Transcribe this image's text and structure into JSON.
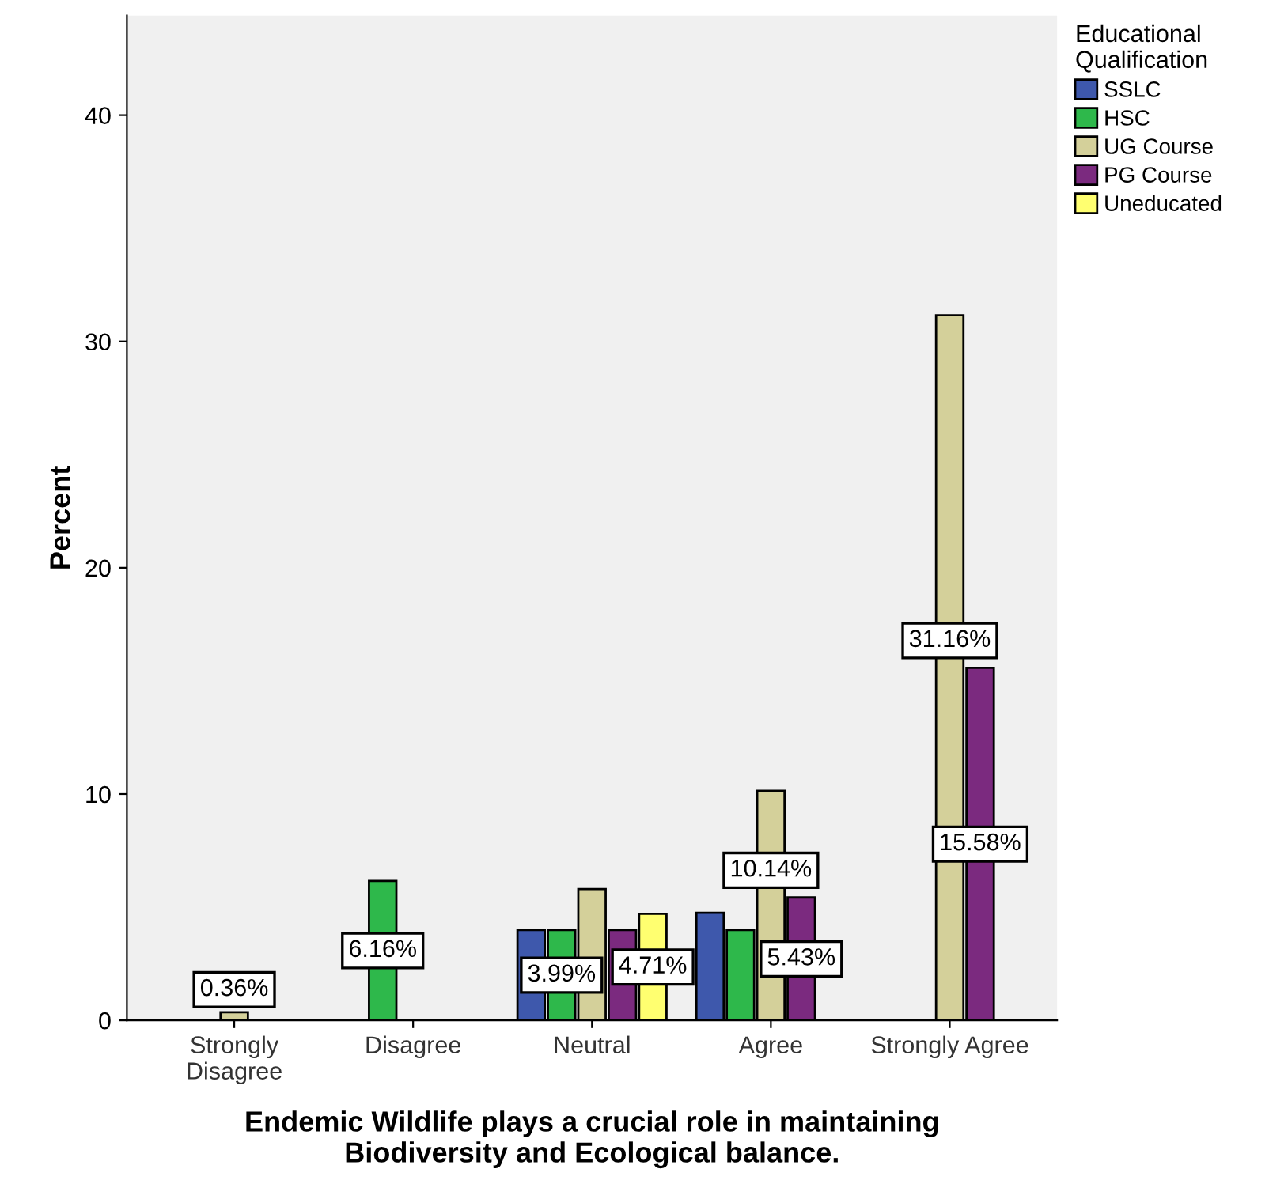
{
  "chart_data": {
    "type": "bar",
    "xlabel": "Endemic Wildlife plays a crucial role in maintaining\nBiodiversity and Ecological balance.",
    "ylabel": "Percent",
    "legend_title": "Educational\nQualification",
    "categories": [
      "Strongly\nDisagree",
      "Disagree",
      "Neutral",
      "Agree",
      "Strongly Agree"
    ],
    "series": [
      {
        "name": "SSLC",
        "color": "#3e58ac",
        "values": [
          null,
          null,
          3.99,
          4.75,
          null
        ],
        "value_labels": [
          null,
          null,
          null,
          null,
          null
        ]
      },
      {
        "name": "HSC",
        "color": "#2eb84b",
        "values": [
          null,
          6.16,
          3.99,
          3.99,
          null
        ],
        "value_labels": [
          null,
          "6.16%",
          "3.99%",
          null,
          null
        ]
      },
      {
        "name": "UG Course",
        "color": "#d4d09a",
        "values": [
          0.36,
          null,
          5.8,
          10.14,
          31.16
        ],
        "value_labels": [
          "0.36%",
          null,
          null,
          "10.14%",
          "31.16%"
        ]
      },
      {
        "name": "PG Course",
        "color": "#7b2a7f",
        "values": [
          null,
          null,
          3.99,
          5.43,
          15.58
        ],
        "value_labels": [
          null,
          null,
          null,
          "5.43%",
          "15.58%"
        ]
      },
      {
        "name": "Uneducated",
        "color": "#ffff70",
        "values": [
          null,
          null,
          4.71,
          null,
          null
        ],
        "value_labels": [
          null,
          null,
          "4.71%",
          null,
          null
        ]
      }
    ],
    "ylim": [
      0,
      44.4
    ],
    "yticks": [
      0,
      10,
      20,
      30,
      40
    ],
    "grid": false,
    "legend": "top right"
  }
}
